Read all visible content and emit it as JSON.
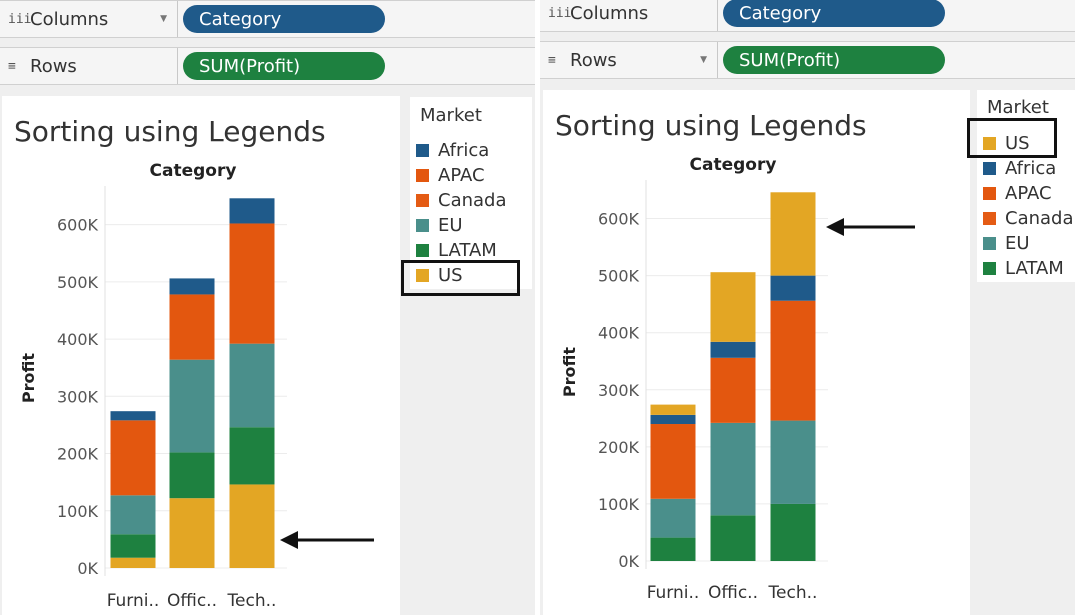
{
  "colors": {
    "Africa": "#1f5a8a",
    "APAC": "#e3570f",
    "Canada": "#e45b14",
    "EU": "#4a8f8b",
    "LATAM": "#1e8140",
    "US": "#e3a624",
    "columns_pill": "#1f5a8a",
    "rows_pill": "#1e8140"
  },
  "left": {
    "columns": {
      "icon": "iii",
      "label": "Columns",
      "pill": "Category"
    },
    "rows": {
      "icon": "≡",
      "label": "Rows",
      "pill": "SUM(Profit)"
    },
    "title": "Sorting using Legends",
    "legend": {
      "title": "Market",
      "items": [
        "Africa",
        "APAC",
        "Canada",
        "EU",
        "LATAM",
        "US"
      ]
    }
  },
  "right": {
    "columns": {
      "icon": "iii",
      "label": "Columns",
      "pill": "Category"
    },
    "rows": {
      "icon": "≡",
      "label": "Rows",
      "pill": "SUM(Profit)"
    },
    "title": "Sorting using Legends",
    "legend": {
      "title": "Market",
      "items": [
        "US",
        "Africa",
        "APAC",
        "Canada",
        "EU",
        "LATAM"
      ]
    }
  },
  "chart_data": [
    {
      "type": "bar",
      "stacked": true,
      "title": "Sorting using Legends",
      "header": "Category",
      "xlabel": "",
      "ylabel": "Profit",
      "categories": [
        "Furni..",
        "Offic..",
        "Tech.."
      ],
      "ylim": [
        0,
        650000
      ],
      "yticks": [
        "0K",
        "100K",
        "200K",
        "300K",
        "400K",
        "500K",
        "600K"
      ],
      "stack_order_bottom_to_top": [
        "US",
        "LATAM",
        "EU",
        "Canada",
        "APAC",
        "Africa"
      ],
      "series": [
        {
          "name": "US",
          "values": [
            18000,
            122000,
            146000
          ]
        },
        {
          "name": "LATAM",
          "values": [
            41000,
            80000,
            100000
          ]
        },
        {
          "name": "EU",
          "values": [
            68000,
            162000,
            146000
          ]
        },
        {
          "name": "Canada",
          "values": [
            0,
            0,
            0
          ]
        },
        {
          "name": "APAC",
          "values": [
            131000,
            114000,
            210000
          ]
        },
        {
          "name": "Africa",
          "values": [
            16000,
            28000,
            44000
          ]
        }
      ]
    },
    {
      "type": "bar",
      "stacked": true,
      "title": "Sorting using Legends",
      "header": "Category",
      "xlabel": "",
      "ylabel": "Profit",
      "categories": [
        "Furni..",
        "Offic..",
        "Tech.."
      ],
      "ylim": [
        0,
        650000
      ],
      "yticks": [
        "0K",
        "100K",
        "200K",
        "300K",
        "400K",
        "500K",
        "600K"
      ],
      "stack_order_bottom_to_top": [
        "LATAM",
        "EU",
        "Canada",
        "APAC",
        "Africa",
        "US"
      ],
      "series": [
        {
          "name": "US",
          "values": [
            18000,
            122000,
            146000
          ]
        },
        {
          "name": "LATAM",
          "values": [
            41000,
            80000,
            100000
          ]
        },
        {
          "name": "EU",
          "values": [
            68000,
            162000,
            146000
          ]
        },
        {
          "name": "Canada",
          "values": [
            0,
            0,
            0
          ]
        },
        {
          "name": "APAC",
          "values": [
            131000,
            114000,
            210000
          ]
        },
        {
          "name": "Africa",
          "values": [
            16000,
            28000,
            44000
          ]
        }
      ]
    }
  ]
}
